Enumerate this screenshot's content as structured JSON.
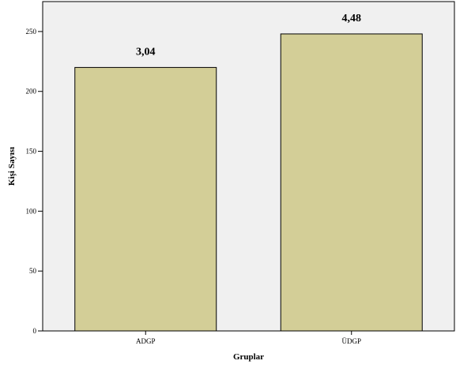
{
  "colors": {
    "plot_background": "#f0f0f0",
    "bar_fill": "#d3ce97",
    "bar_stroke": "#000000",
    "axis": "#000000"
  },
  "chart_data": {
    "type": "bar",
    "categories": [
      "ADGP",
      "ÜDGP"
    ],
    "values": [
      220,
      248
    ],
    "data_labels": [
      "3,04",
      "4,48"
    ],
    "xlabel": "Gruplar",
    "ylabel": "Kişi Sayısı",
    "ylim": [
      0,
      275
    ],
    "yticks": [
      0,
      50,
      100,
      150,
      200,
      250
    ],
    "grid": false,
    "legend": "none"
  }
}
